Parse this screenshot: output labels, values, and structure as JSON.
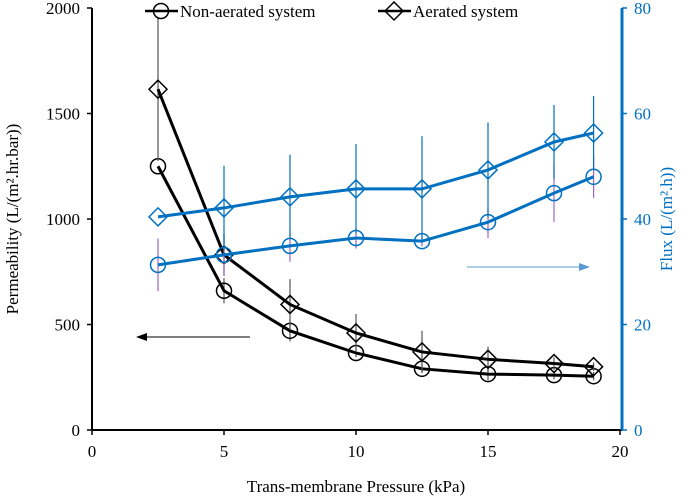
{
  "chart_data": {
    "type": "line",
    "title": "",
    "xlabel": "Trans-membrane Pressure (kPa)",
    "ylabel": "Permeability (L/(m².hr.bar))",
    "y2label": "Flux (L/(m².h))",
    "xlim": [
      0,
      20
    ],
    "ylim": [
      0,
      2000
    ],
    "y2lim": [
      0,
      80
    ],
    "xticks": [
      0,
      5,
      10,
      15,
      20
    ],
    "yticks": [
      0,
      500,
      1000,
      1500,
      2000
    ],
    "y2ticks": [
      0,
      20,
      40,
      60,
      80
    ],
    "grid": false,
    "legend": {
      "position": "top",
      "entries": [
        "Non-aerated system",
        "Aerated system"
      ]
    },
    "x": [
      2.5,
      5,
      7.5,
      10,
      12.5,
      15,
      17.5,
      19
    ],
    "series": [
      {
        "name": "Non-aerated system",
        "quantity": "Permeability",
        "axis": "left",
        "marker": "circle",
        "color": "#000000",
        "values": [
          1250,
          660,
          470,
          365,
          290,
          265,
          260,
          255
        ],
        "errors": [
          0,
          60,
          50,
          20,
          20,
          30,
          20,
          20
        ],
        "error_color": "#555555"
      },
      {
        "name": "Aerated system",
        "quantity": "Permeability",
        "axis": "left",
        "marker": "diamond",
        "color": "#000000",
        "values": [
          1615,
          830,
          595,
          460,
          370,
          335,
          315,
          300
        ],
        "errors": [
          340,
          100,
          120,
          90,
          100,
          60,
          30,
          20
        ],
        "error_color": "#555555"
      },
      {
        "name": "Non-aerated system",
        "quantity": "Flux",
        "axis": "right",
        "marker": "circle",
        "color": "#0070C0",
        "values": [
          31.3,
          33.2,
          34.9,
          36.4,
          35.8,
          39.4,
          44.9,
          48.0
        ],
        "errors": [
          5,
          4,
          3,
          2,
          1,
          3,
          5.5,
          4
        ],
        "error_color": "#9966CC"
      },
      {
        "name": "Aerated system",
        "quantity": "Flux",
        "axis": "right",
        "marker": "diamond",
        "color": "#0070C0",
        "values": [
          40.4,
          42.1,
          44.2,
          45.7,
          45.7,
          49.3,
          54.6,
          56.3
        ],
        "errors": [
          0,
          8,
          8,
          8.5,
          10,
          9,
          7,
          7
        ],
        "error_color": "#0070C0"
      }
    ],
    "annotations": [
      {
        "type": "arrow",
        "direction": "left",
        "meaning": "left axis series",
        "color": "#000000"
      },
      {
        "type": "arrow",
        "direction": "right",
        "meaning": "right axis series",
        "color": "#5B9BD5"
      }
    ]
  }
}
